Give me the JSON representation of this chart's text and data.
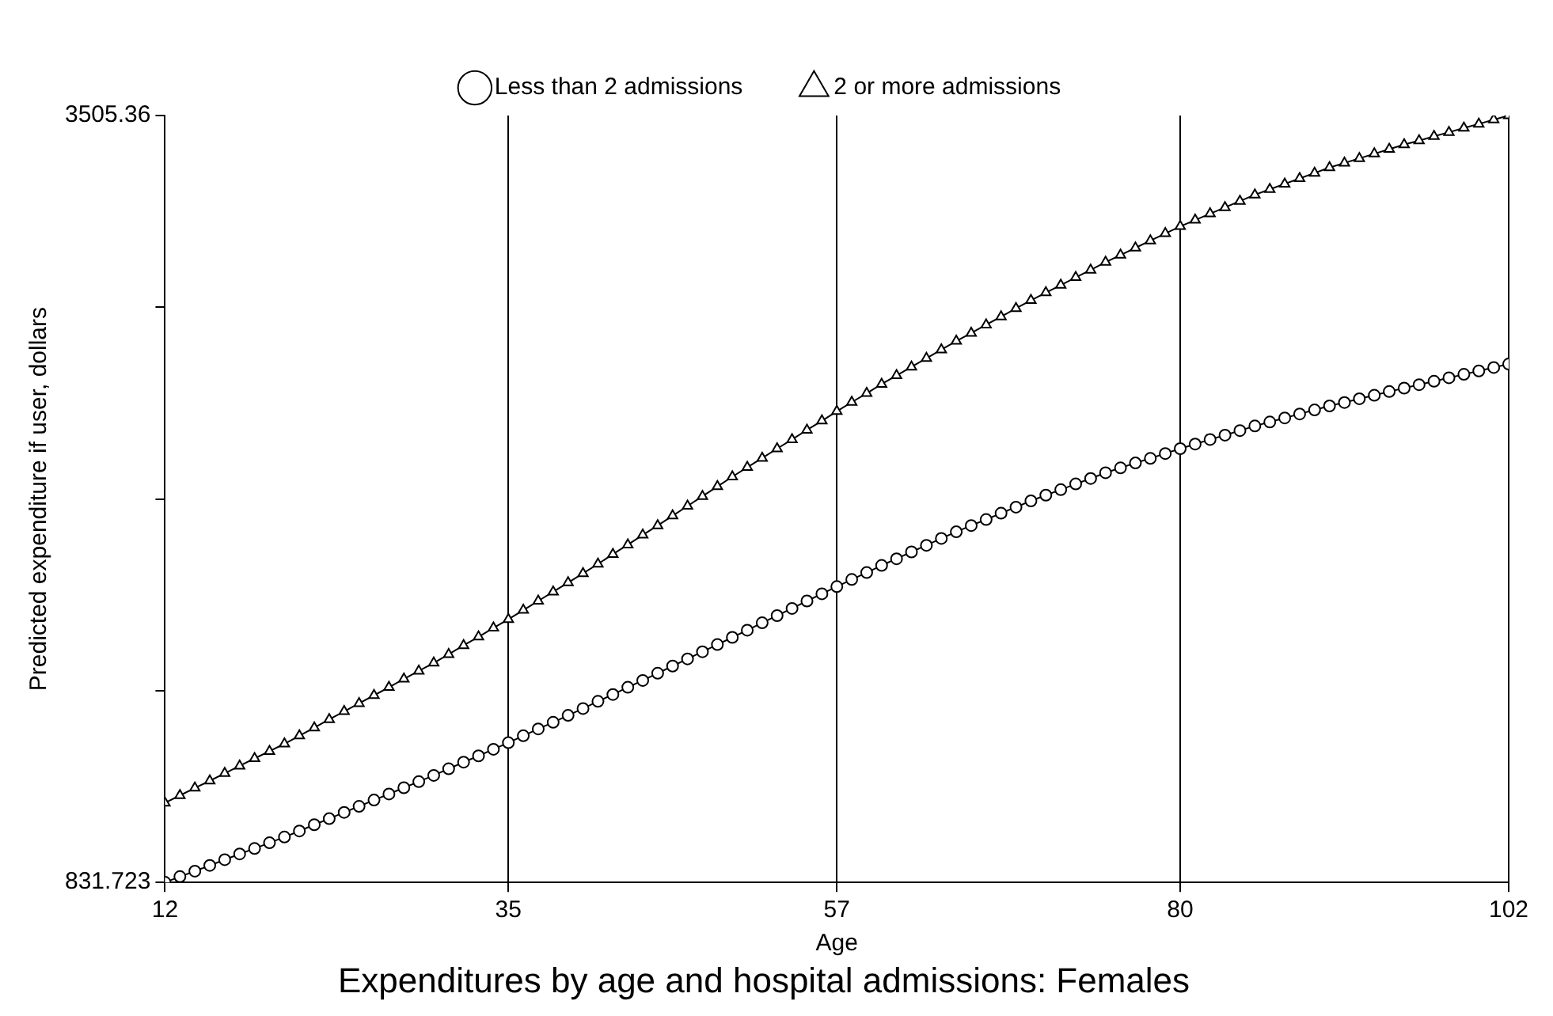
{
  "chart_data": {
    "type": "line",
    "title": "Expenditures by age and hospital admissions: Females",
    "xlabel": "Age",
    "ylabel": "Predicted expenditure if user, dollars",
    "x": [
      12,
      13,
      14,
      15,
      16,
      17,
      18,
      19,
      20,
      21,
      22,
      23,
      24,
      25,
      26,
      27,
      28,
      29,
      30,
      31,
      32,
      33,
      34,
      35,
      36,
      37,
      38,
      39,
      40,
      41,
      42,
      43,
      44,
      45,
      46,
      47,
      48,
      49,
      50,
      51,
      52,
      53,
      54,
      55,
      56,
      57,
      58,
      59,
      60,
      61,
      62,
      63,
      64,
      65,
      66,
      67,
      68,
      69,
      70,
      71,
      72,
      73,
      74,
      75,
      76,
      77,
      78,
      79,
      80,
      81,
      82,
      83,
      84,
      85,
      86,
      87,
      88,
      89,
      90,
      91,
      92,
      93,
      94,
      95,
      96,
      97,
      98,
      99,
      100,
      101,
      102
    ],
    "series": [
      {
        "name": "Less than 2 admissions",
        "color": "#000000",
        "marker": "circle",
        "values": [
          832,
          852,
          871,
          891,
          911,
          931,
          950,
          970,
          990,
          1011,
          1033,
          1054,
          1076,
          1097,
          1119,
          1140,
          1162,
          1183,
          1205,
          1228,
          1251,
          1273,
          1296,
          1319,
          1343,
          1367,
          1390,
          1414,
          1438,
          1463,
          1487,
          1512,
          1536,
          1561,
          1586,
          1611,
          1636,
          1661,
          1686,
          1711,
          1737,
          1762,
          1787,
          1813,
          1838,
          1863,
          1888,
          1912,
          1937,
          1960,
          1984,
          2007,
          2031,
          2054,
          2076,
          2097,
          2119,
          2140,
          2162,
          2182,
          2201,
          2221,
          2240,
          2260,
          2277,
          2294,
          2310,
          2327,
          2344,
          2360,
          2376,
          2391,
          2407,
          2423,
          2437,
          2451,
          2465,
          2479,
          2493,
          2505,
          2518,
          2530,
          2543,
          2555,
          2567,
          2579,
          2591,
          2603,
          2615,
          2627,
          2639
        ]
      },
      {
        "name": "2 or more admissions",
        "color": "#000000",
        "marker": "triangle",
        "values": [
          1109,
          1135,
          1161,
          1186,
          1212,
          1238,
          1264,
          1289,
          1315,
          1343,
          1371,
          1400,
          1428,
          1456,
          1484,
          1512,
          1541,
          1569,
          1597,
          1627,
          1658,
          1688,
          1719,
          1749,
          1781,
          1813,
          1845,
          1877,
          1909,
          1942,
          1976,
          2009,
          2043,
          2076,
          2110,
          2144,
          2178,
          2212,
          2246,
          2279,
          2311,
          2344,
          2376,
          2409,
          2441,
          2474,
          2506,
          2537,
          2569,
          2599,
          2629,
          2659,
          2689,
          2719,
          2747,
          2776,
          2804,
          2833,
          2861,
          2888,
          2914,
          2941,
          2967,
          2994,
          3019,
          3044,
          3069,
          3094,
          3119,
          3141,
          3163,
          3185,
          3207,
          3229,
          3248,
          3267,
          3286,
          3305,
          3324,
          3340,
          3356,
          3372,
          3388,
          3404,
          3418,
          3433,
          3447,
          3462,
          3476,
          3491,
          3505.36
        ]
      }
    ],
    "xlim": [
      12,
      102
    ],
    "xticks": [
      12,
      35,
      57,
      80,
      102
    ],
    "ylim": [
      831.723,
      3505.36
    ],
    "yticks": [
      831.723,
      {
        "value": 1500.13,
        "label": null
      },
      {
        "value": 2168.54,
        "label": null
      },
      {
        "value": 2836.95,
        "label": null
      },
      3505.36
    ],
    "grid": "x",
    "legend": "top",
    "line_style": "solid"
  }
}
